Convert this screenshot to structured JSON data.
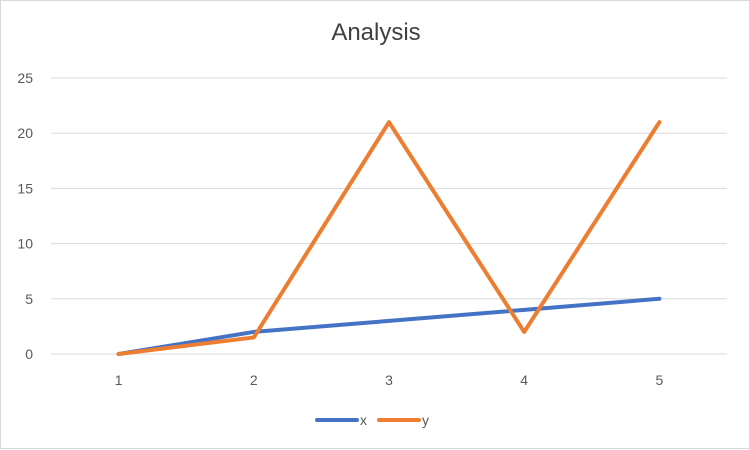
{
  "chart_data": {
    "type": "line",
    "title": "Analysis",
    "categories": [
      "1",
      "2",
      "3",
      "4",
      "5"
    ],
    "series": [
      {
        "name": "x",
        "values": [
          0,
          2,
          3,
          4,
          5
        ],
        "color": "#4472C4"
      },
      {
        "name": "y",
        "values": [
          0,
          1.5,
          21,
          2,
          21
        ],
        "color": "#ED7D31"
      }
    ],
    "ylim": [
      0,
      25
    ],
    "yticks": [
      0,
      5,
      10,
      15,
      20,
      25
    ],
    "grid": true,
    "legend": "bottom"
  }
}
